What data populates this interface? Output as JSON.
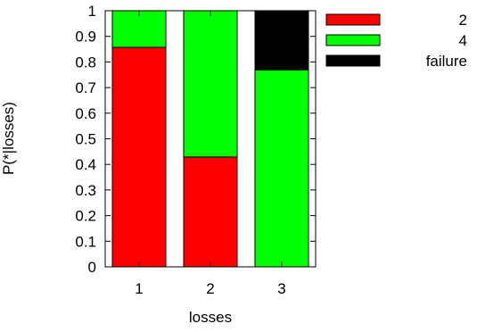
{
  "chart_data": {
    "type": "bar",
    "stacked": true,
    "categories": [
      "1",
      "2",
      "3"
    ],
    "series": [
      {
        "name": "2",
        "color": "#ff0000",
        "values": [
          0.857,
          0.429,
          0.0
        ]
      },
      {
        "name": "4",
        "color": "#00ff00",
        "values": [
          0.143,
          0.571,
          0.769
        ]
      },
      {
        "name": "failure",
        "color": "#000000",
        "values": [
          0.0,
          0.0,
          0.231
        ]
      }
    ],
    "xlabel": "losses",
    "ylabel": "P(*|losses)",
    "ylim": [
      0,
      1
    ],
    "yticks": [
      "0",
      "0.1",
      "0.2",
      "0.3",
      "0.4",
      "0.5",
      "0.6",
      "0.7",
      "0.8",
      "0.9",
      "1"
    ],
    "grid": false,
    "legend_position": "right"
  }
}
